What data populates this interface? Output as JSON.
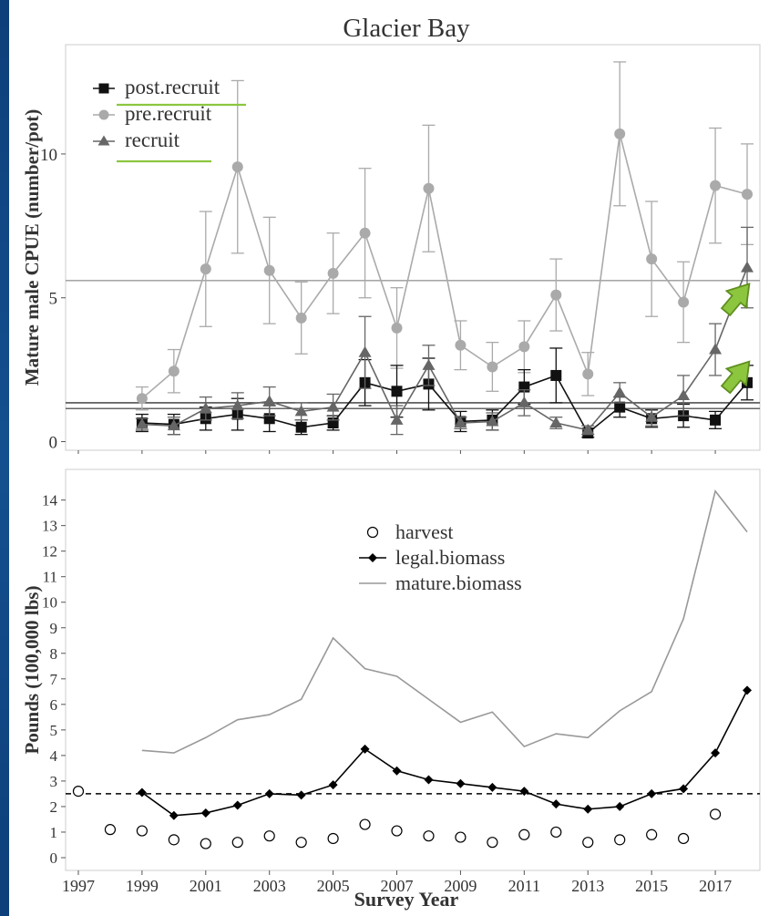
{
  "chart_data": [
    {
      "type": "line",
      "title": "Glacier Bay",
      "ylabel": "Mature male CPUE (number/pot)",
      "xlabel": "",
      "ylim": [
        -0.3,
        13.8
      ],
      "yticks": [
        0,
        5,
        10
      ],
      "x": [
        1999,
        2000,
        2001,
        2002,
        2003,
        2004,
        2005,
        2006,
        2007,
        2008,
        2009,
        2010,
        2011,
        2012,
        2013,
        2014,
        2015,
        2016,
        2017,
        2018
      ],
      "legend": {
        "placement": "top-left"
      },
      "grid": false,
      "series": [
        {
          "name": "post.recruit",
          "marker": "square",
          "color": "#111111",
          "values": [
            0.65,
            0.6,
            0.8,
            0.95,
            0.8,
            0.5,
            0.65,
            2.05,
            1.75,
            2.0,
            0.7,
            0.75,
            1.9,
            2.3,
            0.3,
            1.2,
            0.8,
            0.9,
            0.75,
            2.05
          ],
          "err": [
            0.3,
            0.35,
            0.4,
            0.55,
            0.45,
            0.25,
            0.25,
            0.8,
            0.9,
            0.9,
            0.35,
            0.35,
            0.6,
            0.95,
            0.15,
            0.35,
            0.3,
            0.4,
            0.3,
            0.6
          ]
        },
        {
          "name": "pre.recruit",
          "marker": "circle",
          "color": "#aaaaaa",
          "values": [
            1.5,
            2.45,
            6.0,
            9.55,
            5.95,
            4.3,
            5.85,
            7.25,
            3.95,
            8.8,
            3.35,
            2.6,
            3.3,
            5.1,
            2.35,
            10.7,
            6.35,
            4.85,
            8.9,
            8.6
          ],
          "err": [
            0.4,
            0.75,
            2.0,
            3.0,
            1.85,
            1.25,
            1.4,
            2.25,
            1.4,
            2.2,
            0.85,
            0.85,
            0.9,
            1.25,
            0.75,
            2.5,
            2.0,
            1.4,
            2.0,
            1.75
          ]
        },
        {
          "name": "recruit",
          "marker": "triangle",
          "color": "#666666",
          "values": [
            0.6,
            0.55,
            1.15,
            1.25,
            1.4,
            1.05,
            1.2,
            3.1,
            0.75,
            2.65,
            0.65,
            0.7,
            1.35,
            0.65,
            0.4,
            1.7,
            0.85,
            1.6,
            3.2,
            6.05
          ],
          "err": [
            0.2,
            0.3,
            0.4,
            0.45,
            0.5,
            0.3,
            0.45,
            1.25,
            0.5,
            0.7,
            0.2,
            0.3,
            0.45,
            0.2,
            0.15,
            0.35,
            0.3,
            0.7,
            0.9,
            1.4
          ]
        }
      ],
      "reference_lines": [
        {
          "value": 5.6,
          "color": "#999999"
        },
        {
          "value": 1.35,
          "color": "#333333"
        },
        {
          "value": 1.15,
          "color": "#666666"
        }
      ],
      "annotations": [
        {
          "type": "arrow",
          "color": "#8cc63f",
          "x": 2017.7,
          "y": 5.0
        },
        {
          "type": "arrow",
          "color": "#8cc63f",
          "x": 2017.7,
          "y": 2.3
        }
      ]
    },
    {
      "type": "line",
      "title": "",
      "ylabel": "Pounds (100,000 lbs)",
      "xlabel": "Survey Year",
      "ylim": [
        -0.5,
        15.2
      ],
      "yticks": [
        0,
        1,
        2,
        3,
        4,
        5,
        6,
        7,
        8,
        9,
        10,
        11,
        12,
        13,
        14
      ],
      "xticks": [
        1997,
        1999,
        2001,
        2003,
        2005,
        2007,
        2009,
        2011,
        2013,
        2015,
        2017
      ],
      "legend": {
        "placement": "top-center"
      },
      "grid": false,
      "series": [
        {
          "name": "harvest",
          "marker": "open-circle",
          "color": "#000000",
          "x": [
            1997,
            1998,
            1999,
            2000,
            2001,
            2002,
            2003,
            2004,
            2005,
            2006,
            2007,
            2008,
            2009,
            2010,
            2011,
            2012,
            2013,
            2014,
            2015,
            2016,
            2017
          ],
          "values": [
            2.6,
            1.1,
            1.05,
            0.7,
            0.55,
            0.6,
            0.85,
            0.6,
            0.75,
            1.3,
            1.05,
            0.85,
            0.8,
            0.6,
            0.9,
            1.0,
            0.6,
            0.7,
            0.9,
            0.75,
            1.7
          ]
        },
        {
          "name": "legal.biomass",
          "marker": "diamond",
          "color": "#000000",
          "x": [
            1999,
            2000,
            2001,
            2002,
            2003,
            2004,
            2005,
            2006,
            2007,
            2008,
            2009,
            2010,
            2011,
            2012,
            2013,
            2014,
            2015,
            2016,
            2017,
            2018
          ],
          "values": [
            2.55,
            1.65,
            1.75,
            2.05,
            2.5,
            2.45,
            2.85,
            4.25,
            3.4,
            3.05,
            2.9,
            2.75,
            2.6,
            2.1,
            1.9,
            2.0,
            2.5,
            2.7,
            4.1,
            6.55
          ]
        },
        {
          "name": "mature.biomass",
          "marker": "none",
          "color": "#999999",
          "x": [
            1999,
            2000,
            2001,
            2002,
            2003,
            2004,
            2005,
            2006,
            2007,
            2008,
            2009,
            2010,
            2011,
            2012,
            2013,
            2014,
            2015,
            2016,
            2017,
            2018
          ],
          "values": [
            4.2,
            4.1,
            4.7,
            5.4,
            5.6,
            6.2,
            8.6,
            7.4,
            7.1,
            6.2,
            5.3,
            5.7,
            4.35,
            4.85,
            4.7,
            5.75,
            6.5,
            9.35,
            14.35,
            12.75
          ]
        }
      ],
      "reference_lines": [
        {
          "value": 2.5,
          "color": "#000000",
          "style": "dashed"
        }
      ]
    }
  ]
}
